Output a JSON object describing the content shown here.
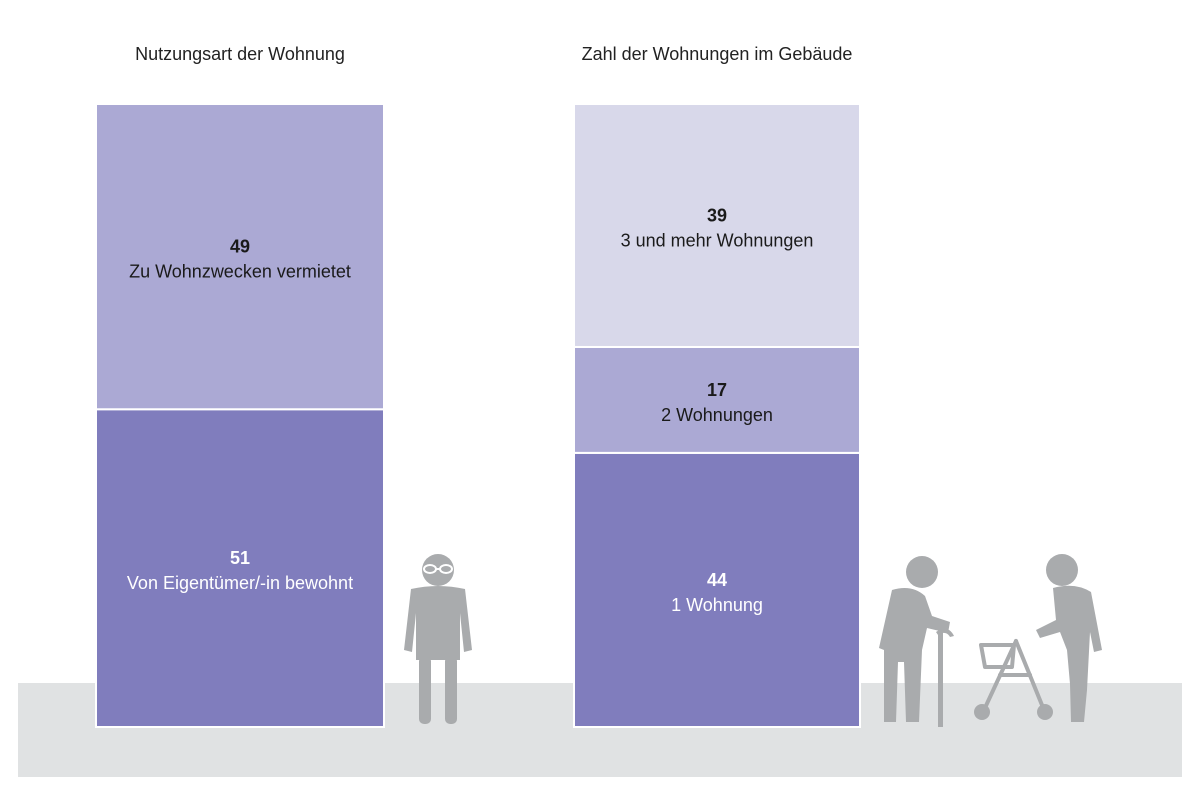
{
  "chart_data": [
    {
      "type": "bar",
      "stacked": true,
      "title": "Nutzungsart der Wohnung",
      "ylim": [
        0,
        100
      ],
      "segments": [
        {
          "name": "Von Eigentümer/-in bewohnt",
          "value": 51,
          "color": "#807dbd",
          "text_color": "#ffffff"
        },
        {
          "name": "Zu Wohnzwecken vermietet",
          "value": 49,
          "color": "#aba9d4",
          "text_color": "#1a1a1a"
        }
      ]
    },
    {
      "type": "bar",
      "stacked": true,
      "title": "Zahl der Wohnungen im Gebäude",
      "ylim": [
        0,
        100
      ],
      "segments": [
        {
          "name": "1 Wohnung",
          "value": 44,
          "color": "#807dbd",
          "text_color": "#ffffff"
        },
        {
          "name": "2 Wohnungen",
          "value": 17,
          "color": "#aba9d4",
          "text_color": "#1a1a1a"
        },
        {
          "name": "3 und mehr Wohnungen",
          "value": 39,
          "color": "#d8d8ea",
          "text_color": "#1a1a1a"
        }
      ]
    }
  ],
  "colors": {
    "ground": "#e0e2e3",
    "figures": "#a9abad"
  },
  "icons": [
    "elderly-woman-icon",
    "elderly-man-with-cane-icon",
    "elderly-man-with-rollator-icon"
  ]
}
